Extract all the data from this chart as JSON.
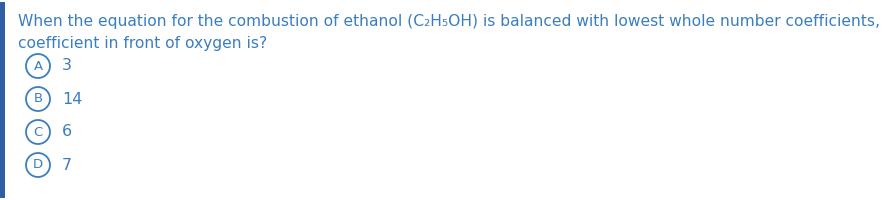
{
  "question_line1": "When the equation for the combustion of ethanol (C₂H₅OH) is balanced with lowest whole number coefficients, the",
  "question_line2": "coefficient in front of oxygen is?",
  "options": [
    {
      "label": "A",
      "text": "3"
    },
    {
      "label": "B",
      "text": "14"
    },
    {
      "label": "C",
      "text": "6"
    },
    {
      "label": "D",
      "text": "7"
    }
  ],
  "text_color": "#3a7ebf",
  "circle_color": "#3a7ebf",
  "bg_color": "#ffffff",
  "accent_bar_color": "#2e5fa3",
  "question_fontsize": 11.2,
  "option_fontsize": 11.5,
  "label_fontsize": 9.5
}
